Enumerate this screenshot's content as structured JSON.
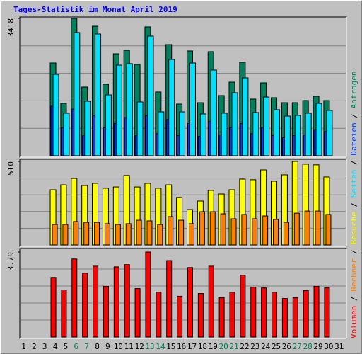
{
  "chart_data": {
    "type": "bar",
    "title": "Tages-Statistik im Monat April 2019",
    "categories": [
      "1",
      "2",
      "3",
      "4",
      "5",
      "6",
      "7",
      "8",
      "9",
      "10",
      "11",
      "12",
      "13",
      "14",
      "15",
      "16",
      "17",
      "18",
      "19",
      "20",
      "21",
      "22",
      "23",
      "24",
      "25",
      "26",
      "27",
      "28",
      "29",
      "30",
      "31"
    ],
    "category_colors": [
      "#000000",
      "#000000",
      "#000000",
      "#000000",
      "#000000",
      "#00805c",
      "#00805c",
      "#000000",
      "#000000",
      "#000000",
      "#000000",
      "#000000",
      "#00805c",
      "#00805c",
      "#000000",
      "#000000",
      "#000000",
      "#000000",
      "#000000",
      "#00805c",
      "#00805c",
      "#000000",
      "#000000",
      "#000000",
      "#000000",
      "#000000",
      "#00805c",
      "#00805c",
      "#000000",
      "#000000",
      "#000000"
    ],
    "legend_separator": " / ",
    "panels": [
      {
        "ylim": [
          0,
          3418
        ],
        "yticks": [
          3418
        ],
        "series": [
          {
            "name": "Anfragen",
            "color": "#00805c",
            "values": [
              0,
              0,
              0,
              2308,
              1304,
              3418,
              1709,
              3224,
              1780,
              2537,
              2625,
              2273,
              3207,
              1586,
              2766,
              1286,
              2608,
              1321,
              2590,
              1498,
              1832,
              2326,
              1410,
              1815,
              1445,
              1321,
              1321,
              1374,
              1480,
              1374,
              0
            ]
          },
          {
            "name": "Dateien",
            "color": "#0040ff",
            "values": [
              0,
              0,
              0,
              1230,
              700,
              1160,
              500,
              1000,
              700,
              800,
              950,
              500,
              1000,
              550,
              900,
              500,
              800,
              480,
              850,
              520,
              700,
              800,
              550,
              700,
              500,
              450,
              500,
              520,
              650,
              600,
              0
            ]
          },
          {
            "name": "Seiten",
            "color": "#00e0ff",
            "values": [
              0,
              0,
              0,
              2026,
              1057,
              3066,
              1357,
              3030,
              1515,
              2255,
              2291,
              1339,
              2978,
              1092,
              2396,
              1092,
              2308,
              1040,
              2132,
              1057,
              1568,
              1938,
              1075,
              1462,
              1145,
              987,
              1004,
              1057,
              1304,
              1128,
              0
            ]
          }
        ]
      },
      {
        "ylim": [
          0,
          510
        ],
        "yticks": [
          510
        ],
        "series": [
          {
            "name": "Besuche",
            "color": "#ffff00",
            "values": [
              0,
              0,
              0,
              337,
              367,
              406,
              363,
              376,
              346,
              354,
              424,
              354,
              376,
              346,
              367,
              290,
              216,
              268,
              333,
              311,
              337,
              402,
              398,
              458,
              389,
              428,
              510,
              493,
              489,
              415,
              0
            ]
          },
          {
            "name": "Rechner",
            "color": "#ff8000",
            "values": [
              0,
              0,
              0,
              125,
              125,
              143,
              138,
              138,
              130,
              125,
              130,
              151,
              147,
              125,
              173,
              151,
              130,
              203,
              203,
              190,
              160,
              186,
              160,
              177,
              156,
              138,
              194,
              207,
              207,
              186,
              0
            ]
          }
        ]
      },
      {
        "ylim": [
          0,
          3.79
        ],
        "yticks": [
          3.79
        ],
        "series": [
          {
            "name": "Volumen",
            "color": "#ff0000",
            "values": [
              0,
              0,
              0,
              2.66,
              2.1,
              3.48,
              2.85,
              3.16,
              2.26,
              3.13,
              3.23,
              2.16,
              3.79,
              2.0,
              3.41,
              1.82,
              3.1,
              1.94,
              3.16,
              1.75,
              2.0,
              2.76,
              2.22,
              2.19,
              2.0,
              1.72,
              1.75,
              2.07,
              2.26,
              2.19,
              0
            ]
          }
        ]
      }
    ]
  }
}
